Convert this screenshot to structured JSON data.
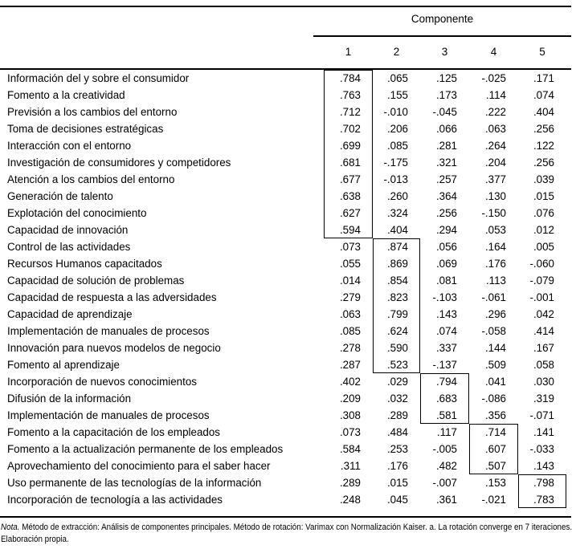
{
  "table": {
    "title": "Componente",
    "columns": [
      "1",
      "2",
      "3",
      "4",
      "5"
    ],
    "rows": [
      {
        "label": "Información del y sobre el consumidor",
        "values": [
          ".784",
          ".065",
          ".125",
          "-.025",
          ".171"
        ]
      },
      {
        "label": "Fomento a la creatividad",
        "values": [
          ".763",
          ".155",
          ".173",
          ".114",
          ".074"
        ]
      },
      {
        "label": "Previsión a los cambios del entorno",
        "values": [
          ".712",
          "-.010",
          "-.045",
          ".222",
          ".404"
        ]
      },
      {
        "label": "Toma de decisiones estratégicas",
        "values": [
          ".702",
          ".206",
          ".066",
          ".063",
          ".256"
        ]
      },
      {
        "label": "Interacción con el entorno",
        "values": [
          ".699",
          ".085",
          ".281",
          ".264",
          ".122"
        ]
      },
      {
        "label": "Investigación de consumidores y competidores",
        "values": [
          ".681",
          "-.175",
          ".321",
          ".204",
          ".256"
        ]
      },
      {
        "label": "Atención a los cambios del entorno",
        "values": [
          ".677",
          "-.013",
          ".257",
          ".377",
          ".039"
        ]
      },
      {
        "label": "Generación de talento",
        "values": [
          ".638",
          ".260",
          ".364",
          ".130",
          ".015"
        ]
      },
      {
        "label": "Explotación del conocimiento",
        "values": [
          ".627",
          ".324",
          ".256",
          "-.150",
          ".076"
        ]
      },
      {
        "label": "Capacidad de innovación",
        "values": [
          ".594",
          ".404",
          ".294",
          ".053",
          ".012"
        ]
      },
      {
        "label": "Control de las actividades",
        "values": [
          ".073",
          ".874",
          ".056",
          ".164",
          ".005"
        ]
      },
      {
        "label": "Recursos Humanos capacitados",
        "values": [
          ".055",
          ".869",
          ".069",
          ".176",
          "-.060"
        ]
      },
      {
        "label": "Capacidad de solución de problemas",
        "values": [
          ".014",
          ".854",
          ".081",
          ".113",
          "-.079"
        ]
      },
      {
        "label": "Capacidad de respuesta a las adversidades",
        "values": [
          ".279",
          ".823",
          "-.103",
          "-.061",
          "-.001"
        ]
      },
      {
        "label": "Capacidad de aprendizaje",
        "values": [
          ".063",
          ".799",
          ".143",
          ".296",
          ".042"
        ]
      },
      {
        "label": "Implementación de manuales de procesos",
        "values": [
          ".085",
          ".624",
          ".074",
          "-.058",
          ".414"
        ]
      },
      {
        "label": "Innovación para nuevos modelos de negocio",
        "values": [
          ".278",
          ".590",
          ".337",
          ".144",
          ".167"
        ]
      },
      {
        "label": "Fomento al aprendizaje",
        "values": [
          ".287",
          ".523",
          "-.137",
          ".509",
          ".058"
        ]
      },
      {
        "label": "Incorporación de nuevos conocimientos",
        "values": [
          ".402",
          ".029",
          ".794",
          ".041",
          ".030"
        ]
      },
      {
        "label": "Difusión de la información",
        "values": [
          ".209",
          ".032",
          ".683",
          "-.086",
          ".319"
        ]
      },
      {
        "label": "Implementación de manuales de procesos",
        "values": [
          ".308",
          ".289",
          ".581",
          ".356",
          "-.071"
        ]
      },
      {
        "label": "Fomento a la capacitación de los empleados",
        "values": [
          ".073",
          ".484",
          ".117",
          ".714",
          ".141"
        ]
      },
      {
        "label": "Fomento a la actualización permanente de los empleados",
        "values": [
          ".584",
          ".253",
          "-.005",
          ".607",
          "-.033"
        ]
      },
      {
        "label": "Aprovechamiento del conocimiento para el saber hacer",
        "values": [
          ".311",
          ".176",
          ".482",
          ".507",
          ".143"
        ]
      },
      {
        "label": "Uso permanente de las tecnologías de la información",
        "values": [
          ".289",
          ".015",
          "-.007",
          ".153",
          ".798"
        ]
      },
      {
        "label": "Incorporación de tecnología a las actividades",
        "values": [
          ".248",
          ".045",
          ".361",
          "-.021",
          ".783"
        ]
      }
    ],
    "groups": [
      {
        "component": "1",
        "row_start": 1,
        "row_end": 10
      },
      {
        "component": "2",
        "row_start": 11,
        "row_end": 18
      },
      {
        "component": "3",
        "row_start": 19,
        "row_end": 21
      },
      {
        "component": "4",
        "row_start": 22,
        "row_end": 24
      },
      {
        "component": "5",
        "row_start": 25,
        "row_end": 26
      }
    ]
  },
  "note": {
    "prefix": "Nota.",
    "line1_rest": " Método de extracción: Análisis de componentes principales. Método de rotación: Varimax con Normalización Kaiser. a. La rotación converge en 7 iteraciones.",
    "line2": "Elaboración propia."
  }
}
